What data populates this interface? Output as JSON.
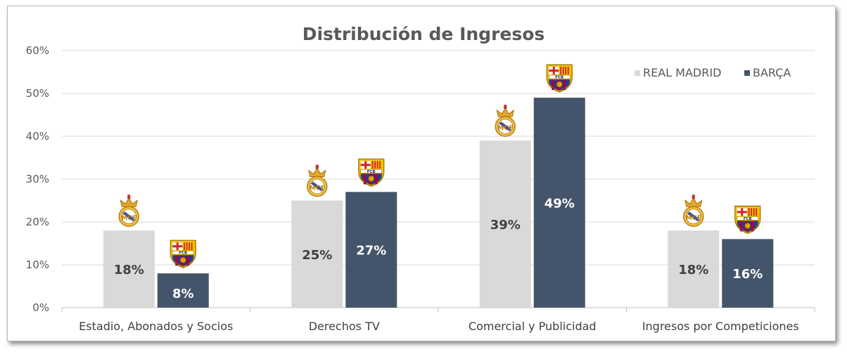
{
  "chart_data": {
    "type": "bar",
    "title": "Distribución de Ingresos",
    "categories": [
      "Estadio, Abonados y Socios",
      "Derechos TV",
      "Comercial y Publicidad",
      "Ingresos por Competiciones"
    ],
    "series": [
      {
        "name": "REAL MADRID",
        "color": "#d9d9d9",
        "label_color": "#404040",
        "icon": "real-madrid-crest-icon",
        "values": [
          18,
          25,
          39,
          18
        ],
        "labels": [
          "18%",
          "25%",
          "39%",
          "18%"
        ]
      },
      {
        "name": "BARÇA",
        "color": "#44546a",
        "label_color": "#ffffff",
        "icon": "fc-barcelona-crest-icon",
        "values": [
          8,
          27,
          49,
          16
        ],
        "labels": [
          "8%",
          "27%",
          "49%",
          "16%"
        ]
      }
    ],
    "ylim": [
      0,
      60
    ],
    "yticks": [
      "0%",
      "10%",
      "20%",
      "30%",
      "40%",
      "50%",
      "60%"
    ],
    "grid": true,
    "legend_position": "top-right"
  }
}
